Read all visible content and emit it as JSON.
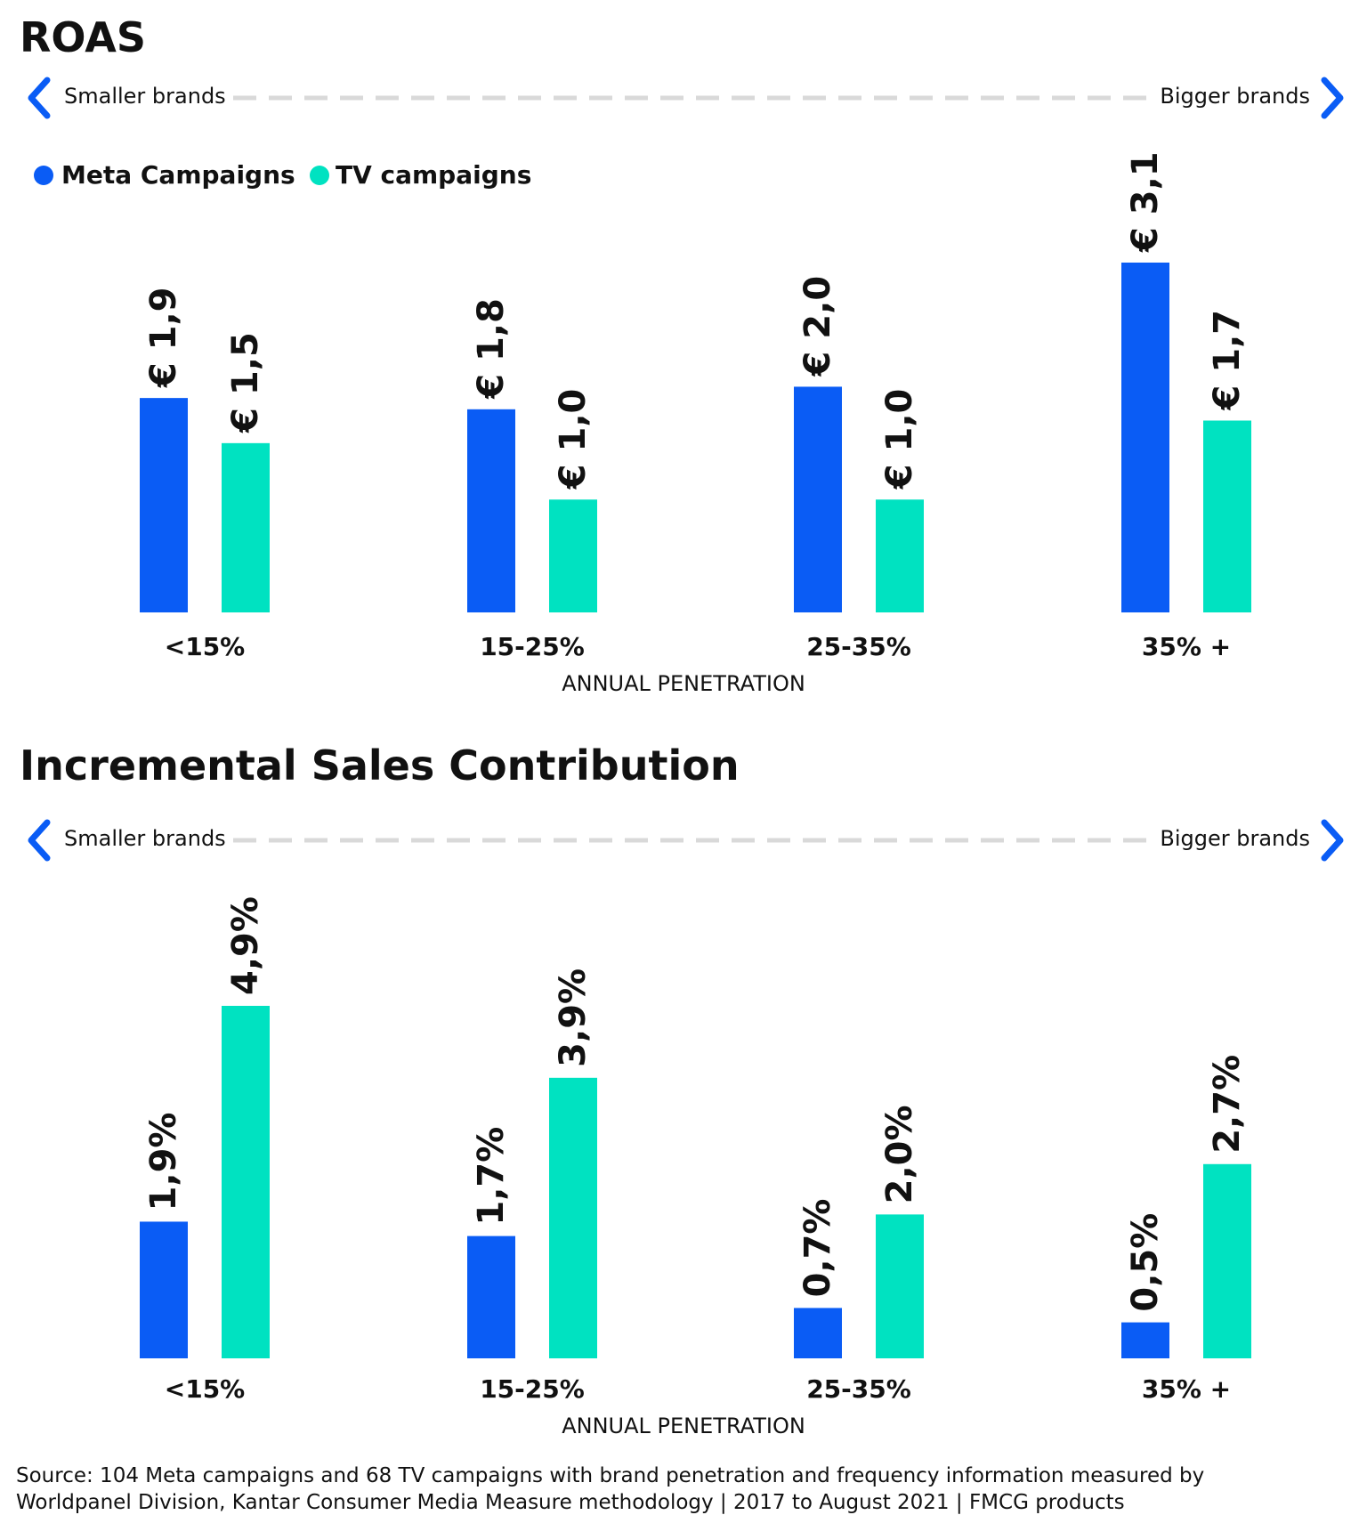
{
  "colors": {
    "meta": "#0a5cf5",
    "tv": "#00e2c1",
    "arrow": "#0a5cf5",
    "dash": "#d9d9d9",
    "text": "#111111"
  },
  "range": {
    "left_label": "Smaller brands",
    "right_label": "Bigger brands",
    "left_icon": "chevron-left-icon",
    "right_icon": "chevron-right-icon"
  },
  "legend": {
    "items": [
      {
        "label": "Meta Campaigns",
        "color": "#0a5cf5"
      },
      {
        "label": "TV campaigns",
        "color": "#00e2c1"
      }
    ]
  },
  "source": {
    "line1": "Source: 104 Meta campaigns and 68 TV campaigns with brand penetration and frequency information measured by",
    "line2": "Worldpanel Division, Kantar Consumer Media Measure methodology | 2017 to August 2021 | FMCG products"
  },
  "chart_data": [
    {
      "type": "bar",
      "title": "ROAS",
      "xlabel": "ANNUAL PENETRATION",
      "ylabel": "",
      "categories": [
        "<15%",
        "15-25%",
        "25-35%",
        "35% +"
      ],
      "ylim": [
        0,
        3.1
      ],
      "series": [
        {
          "name": "Meta Campaigns",
          "values": [
            1.9,
            1.8,
            2.0,
            3.1
          ],
          "labels": [
            "€ 1,9",
            "€ 1,8",
            "€ 2,0",
            "€ 3,1"
          ]
        },
        {
          "name": "TV campaigns",
          "values": [
            1.5,
            1.0,
            1.0,
            1.7
          ],
          "labels": [
            "€ 1,5",
            "€ 1,0",
            "€ 1,0",
            "€ 1,7"
          ]
        }
      ]
    },
    {
      "type": "bar",
      "title": "Incremental Sales Contribution",
      "xlabel": "ANNUAL PENETRATION",
      "ylabel": "",
      "categories": [
        "<15%",
        "15-25%",
        "25-35%",
        "35% +"
      ],
      "ylim": [
        0,
        4.9
      ],
      "series": [
        {
          "name": "Meta Campaigns",
          "values": [
            1.9,
            1.7,
            0.7,
            0.5
          ],
          "labels": [
            "1,9%",
            "1,7%",
            "0,7%",
            "0,5%"
          ]
        },
        {
          "name": "TV campaigns",
          "values": [
            4.9,
            3.9,
            2.0,
            2.7
          ],
          "labels": [
            "4,9%",
            "3,9%",
            "2,0%",
            "2,7%"
          ]
        }
      ]
    }
  ]
}
